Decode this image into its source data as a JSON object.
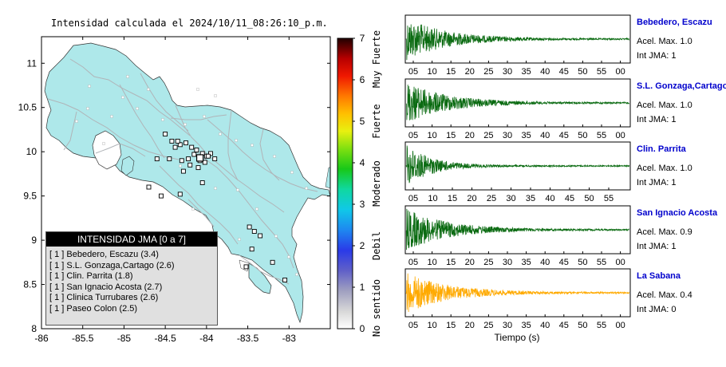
{
  "map_title": "Intensidad calculada el 2024/10/11_08:26:10_p.m.",
  "colors": {
    "land": "#aee8ea",
    "sea": "#ffffff",
    "station": "#ffffff",
    "legend_header_bg": "#000000",
    "legend_body_bg": "#e0e0e0",
    "station_name_color": "#0000cc",
    "trace_green": "#0b6b12",
    "trace_orange": "#ffaa00"
  },
  "legend": {
    "title": "INTENSIDAD JMA [0 a 7]",
    "items": [
      "[ 1 ]  Bebedero, Escazu (3.4)",
      "[ 1 ]  S.L. Gonzaga,Cartago (2.6)",
      "[ 1 ]  Clin. Parrita (1.8)",
      "[ 1 ]  San Ignacio Acosta (2.7)",
      "[ 1 ]  Clinica Turrubares (2.6)",
      "[ 1 ]  Paseo Colon (2.5)"
    ]
  },
  "colorbar": {
    "ticks": [
      "0",
      "1",
      "2",
      "3",
      "4",
      "5",
      "6",
      "7"
    ],
    "categories": [
      "No sentido",
      "Debil",
      "Moderado",
      "Fuerte",
      "Muy Fuerte"
    ],
    "range": [
      0,
      7
    ]
  },
  "chart_data": [
    {
      "type": "scatter",
      "title": "Intensidad calculada el 2024/10/11_08:26:10_p.m.",
      "xlim": [
        -86,
        -82.5
      ],
      "ylim": [
        8,
        11.3
      ],
      "xticks": [
        "-86",
        "-85.5",
        "-85",
        "-84.5",
        "-84",
        "-83.5",
        "-83"
      ],
      "yticks": [
        "8",
        "8.5",
        "9",
        "9.5",
        "10",
        "10.5",
        "11"
      ],
      "xtick_values": [
        -86,
        -85.5,
        -85,
        -84.5,
        -84,
        -83.5,
        -83
      ],
      "ytick_values": [
        8,
        8.5,
        9,
        9.5,
        10,
        10.5,
        11
      ],
      "x": [
        -84.5,
        -84.42,
        -84.38,
        -84.32,
        -84.25,
        -84.18,
        -84.12,
        -84.05,
        -84.0,
        -83.95,
        -84.22,
        -84.08,
        -84.02,
        -84.3,
        -84.45,
        -84.2,
        -84.1,
        -83.98,
        -84.15,
        -84.35,
        -84.6,
        -84.28,
        -84.05,
        -83.9,
        -84.7,
        -84.55,
        -84.32,
        -83.48,
        -83.42,
        -83.35,
        -83.45,
        -83.52,
        -83.2,
        -83.05
      ],
      "y": [
        10.2,
        10.12,
        10.05,
        10.08,
        10.1,
        10.05,
        10.02,
        9.98,
        9.95,
        9.98,
        9.92,
        9.9,
        9.88,
        9.9,
        9.92,
        9.85,
        9.82,
        9.95,
        9.97,
        10.12,
        9.92,
        9.78,
        9.65,
        9.92,
        9.6,
        9.5,
        9.52,
        9.15,
        9.1,
        9.05,
        8.9,
        8.7,
        8.75,
        8.55
      ]
    },
    {
      "type": "line",
      "name": "waveforms",
      "xlabel": "Tiempo (s)",
      "traces": [
        {
          "station": "Bebedero, Escazu",
          "acel": "Acel. Max. 1.0",
          "jma": "Int JMA: 1",
          "amplitude": 1.0,
          "color": "green",
          "ticks": [
            "05",
            "10",
            "15",
            "20",
            "25",
            "30",
            "35",
            "40",
            "45",
            "50",
            "55",
            "00"
          ]
        },
        {
          "station": "S.L. Gonzaga,Cartago",
          "acel": "Acel. Max. 1.0",
          "jma": "Int JMA: 1",
          "amplitude": 1.0,
          "color": "green",
          "ticks": [
            "05",
            "10",
            "15",
            "20",
            "25",
            "30",
            "35",
            "40",
            "45",
            "50",
            "55",
            "00",
            "05"
          ]
        },
        {
          "station": "Clin. Parrita",
          "acel": "Acel. Max. 1.0",
          "jma": "Int JMA: 1",
          "amplitude": 1.0,
          "color": "green",
          "ticks": [
            "05",
            "10",
            "15",
            "20",
            "25",
            "30",
            "35",
            "40",
            "45",
            "50",
            "55"
          ]
        },
        {
          "station": "San Ignacio Acosta",
          "acel": "Acel. Max. 0.9",
          "jma": "Int JMA: 1",
          "amplitude": 0.9,
          "color": "green",
          "ticks": [
            "05",
            "10",
            "15",
            "20",
            "25",
            "30",
            "35",
            "40",
            "45",
            "50",
            "55",
            "00"
          ]
        },
        {
          "station": "La Sabana",
          "acel": "Acel. Max. 0.4",
          "jma": "Int JMA: 0",
          "amplitude": 0.4,
          "color": "orange",
          "ticks": [
            "05",
            "10",
            "15",
            "20",
            "25",
            "30",
            "35",
            "40",
            "45",
            "50",
            "55",
            "00"
          ]
        }
      ]
    }
  ]
}
